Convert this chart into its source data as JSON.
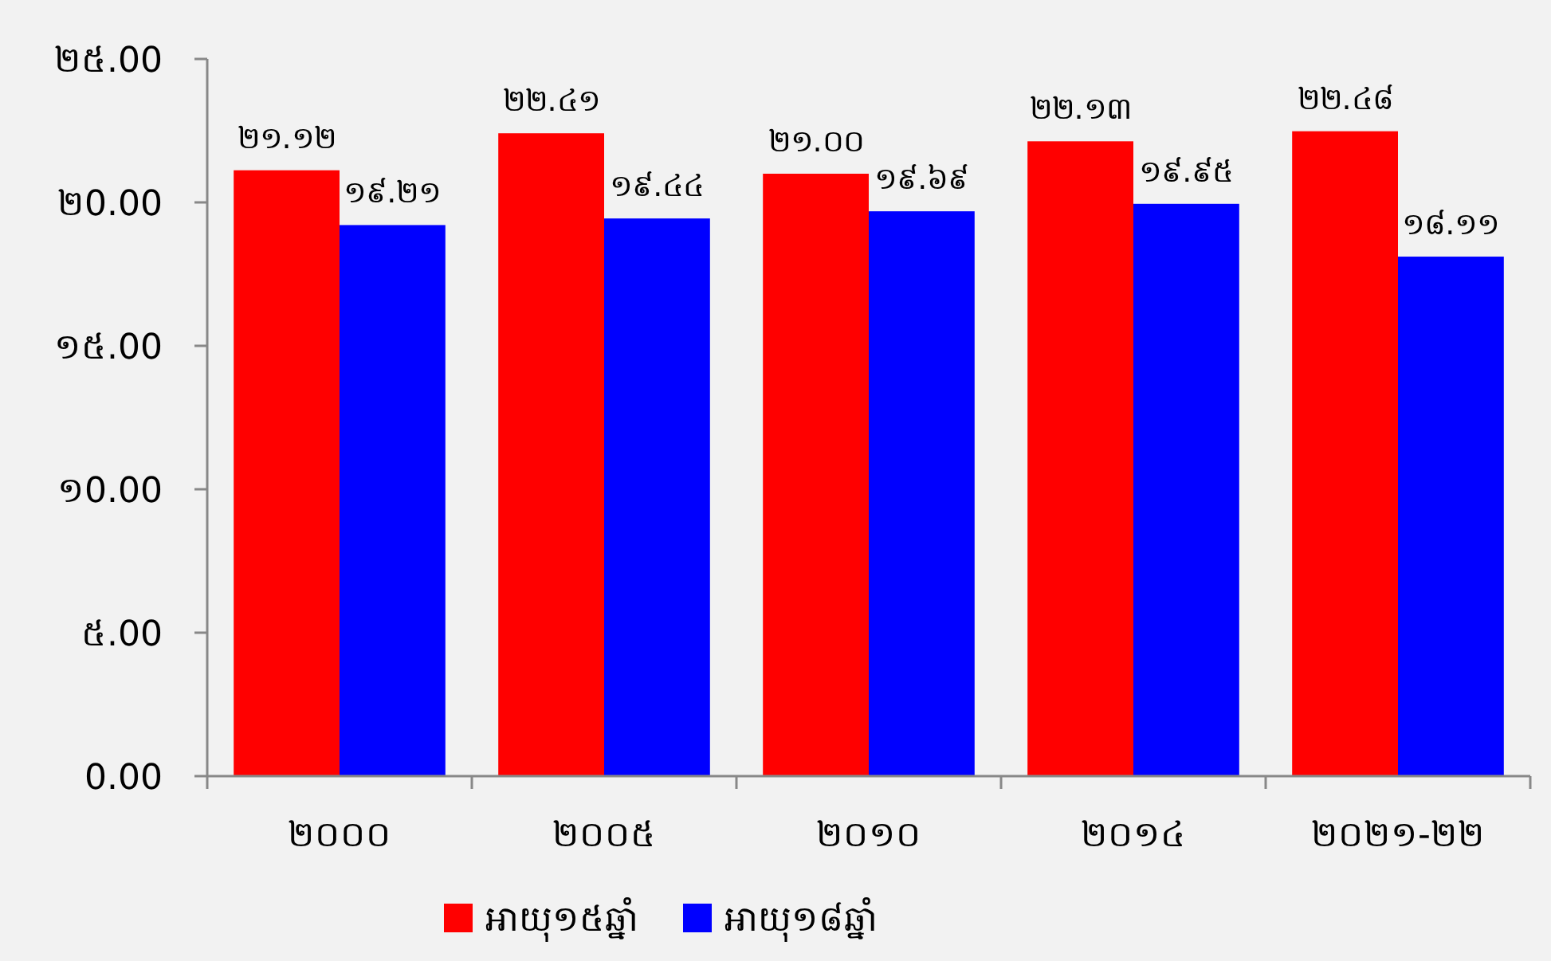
{
  "chart_data": {
    "type": "bar",
    "categories": [
      "២០០០",
      "២០០៥",
      "២០១០",
      "២០១៤",
      "២០២១-២២"
    ],
    "series": [
      {
        "name": "អាយុ១៥ឆ្នាំ",
        "color": "#ff0000",
        "values": [
          21.12,
          22.41,
          21.0,
          22.13,
          22.48
        ],
        "value_labels": [
          "២១.១២",
          "២២.៤១",
          "២១.០០",
          "២២.១៣",
          "២២.៤៨"
        ]
      },
      {
        "name": "អាយុ១៨ឆ្នាំ",
        "color": "#0000ff",
        "values": [
          19.21,
          19.44,
          19.69,
          19.95,
          18.11
        ],
        "value_labels": [
          "១៩.២១",
          "១៩.៤៤",
          "១៩.៦៩",
          "១៩.៩៥",
          "១៨.១១"
        ]
      }
    ],
    "ylim": [
      0,
      25
    ],
    "yticks": [
      {
        "value": 0,
        "label": "0.00"
      },
      {
        "value": 5,
        "label": "៥.00"
      },
      {
        "value": 10,
        "label": "១0.00"
      },
      {
        "value": 15,
        "label": "១៥.00"
      },
      {
        "value": 20,
        "label": "២0.00"
      },
      {
        "value": 25,
        "label": "២៥.00"
      }
    ],
    "grid": false,
    "legend": "bottom"
  }
}
